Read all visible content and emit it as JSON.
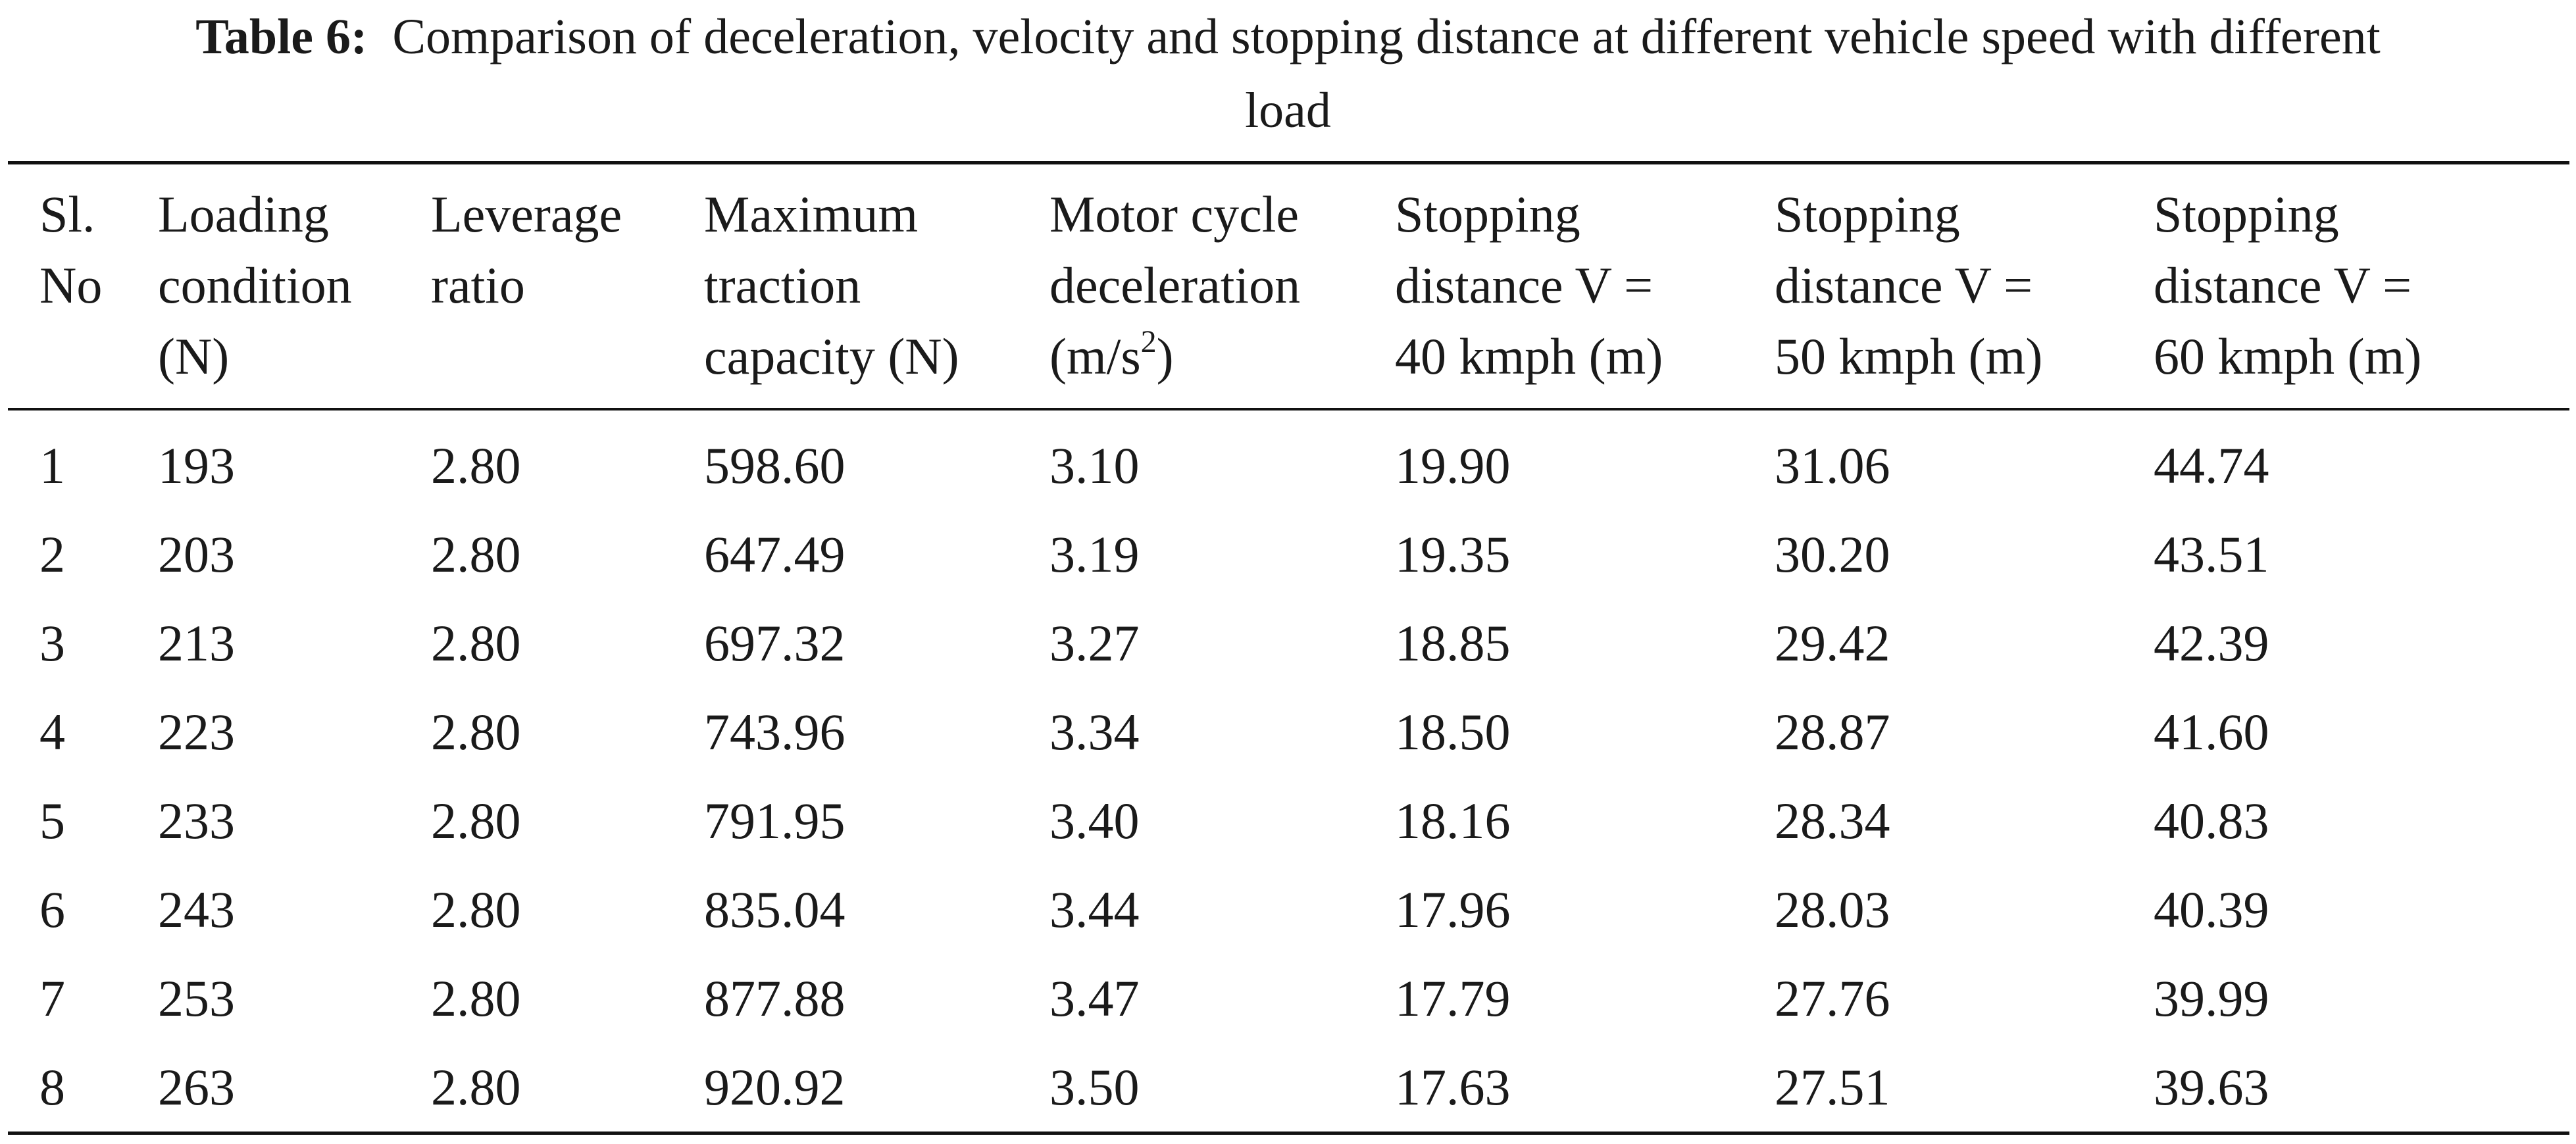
{
  "caption": {
    "label": "Table 6:",
    "text": "Comparison of deceleration, velocity and stopping distance at different vehicle speed with different",
    "text_line2": "load"
  },
  "headers": [
    {
      "line1": "Sl.",
      "line2": "No",
      "line3": ""
    },
    {
      "line1": "Loading",
      "line2": "condition",
      "line3": "(N)"
    },
    {
      "line1": "Leverage",
      "line2": "ratio",
      "line3": ""
    },
    {
      "line1": "Maximum",
      "line2": "traction",
      "line3": "capacity (N)"
    },
    {
      "line1": "Motor cycle",
      "line2": "deceleration",
      "line3_pre": "(m/s",
      "line3_sup": "2",
      "line3_post": ")"
    },
    {
      "line1": "Stopping",
      "line2": "distance V =",
      "line3": "40 kmph (m)"
    },
    {
      "line1": "Stopping",
      "line2": "distance V =",
      "line3": "50 kmph (m)"
    },
    {
      "line1": "Stopping",
      "line2": "distance V =",
      "line3": "60 kmph (m)"
    }
  ],
  "rows": [
    [
      "1",
      "193",
      "2.80",
      "598.60",
      "3.10",
      "19.90",
      "31.06",
      "44.74"
    ],
    [
      "2",
      "203",
      "2.80",
      "647.49",
      "3.19",
      "19.35",
      "30.20",
      "43.51"
    ],
    [
      "3",
      "213",
      "2.80",
      "697.32",
      "3.27",
      "18.85",
      "29.42",
      "42.39"
    ],
    [
      "4",
      "223",
      "2.80",
      "743.96",
      "3.34",
      "18.50",
      "28.87",
      "41.60"
    ],
    [
      "5",
      "233",
      "2.80",
      "791.95",
      "3.40",
      "18.16",
      "28.34",
      "40.83"
    ],
    [
      "6",
      "243",
      "2.80",
      "835.04",
      "3.44",
      "17.96",
      "28.03",
      "40.39"
    ],
    [
      "7",
      "253",
      "2.80",
      "877.88",
      "3.47",
      "17.79",
      "27.76",
      "39.99"
    ],
    [
      "8",
      "263",
      "2.80",
      "920.92",
      "3.50",
      "17.63",
      "27.51",
      "39.63"
    ]
  ]
}
